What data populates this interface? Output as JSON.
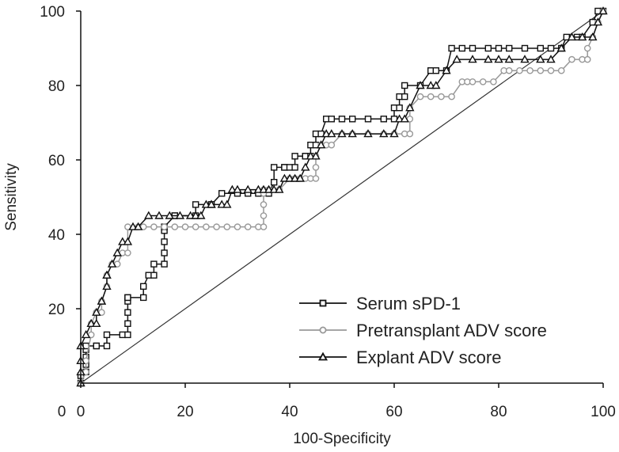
{
  "chart_data": {
    "type": "line",
    "title": "",
    "xlabel": "100-Specificity",
    "ylabel": "Sensitivity",
    "xlim": [
      0,
      100
    ],
    "ylim": [
      0,
      100
    ],
    "xticks": [
      0,
      20,
      40,
      60,
      80,
      100
    ],
    "yticks": [
      20,
      40,
      60,
      80,
      100
    ],
    "grid": false,
    "legend_position": "bottom-right",
    "reference_line": {
      "x": [
        0,
        100
      ],
      "y": [
        0,
        100
      ],
      "color": "#333333"
    },
    "series": [
      {
        "name": "Serum sPD-1",
        "marker": "square",
        "color": "#111111",
        "x": [
          0,
          0,
          1,
          1,
          1,
          1,
          1,
          3,
          3,
          5,
          5,
          8,
          9,
          9,
          9,
          9,
          9,
          9,
          12,
          12,
          13,
          14,
          14,
          16,
          16,
          16,
          16,
          16,
          18,
          18,
          22,
          22,
          25,
          25,
          27,
          30,
          32,
          34,
          36,
          37,
          37,
          39,
          39,
          40,
          41,
          41,
          43,
          43,
          44,
          44,
          45,
          45,
          46,
          47,
          48,
          50,
          52,
          55,
          58,
          60,
          60,
          61,
          61,
          62,
          62,
          65,
          67,
          68,
          70,
          71,
          73,
          75,
          78,
          80,
          82,
          85,
          88,
          90,
          92,
          93,
          95,
          96,
          98,
          99,
          100
        ],
        "y": [
          0,
          2,
          3,
          5,
          7,
          9,
          10,
          10,
          10,
          10,
          13,
          13,
          13,
          16,
          19,
          22,
          23,
          23,
          23,
          26,
          29,
          29,
          32,
          32,
          35,
          38,
          41,
          42,
          45,
          45,
          45,
          48,
          48,
          48,
          51,
          51,
          51,
          51,
          51,
          54,
          58,
          58,
          58,
          58,
          58,
          61,
          61,
          61,
          61,
          64,
          64,
          67,
          67,
          71,
          71,
          71,
          71,
          71,
          71,
          71,
          74,
          74,
          77,
          77,
          80,
          80,
          84,
          84,
          84,
          90,
          90,
          90,
          90,
          90,
          90,
          90,
          90,
          90,
          90,
          93,
          93,
          93,
          97,
          100,
          100
        ]
      },
      {
        "name": "Pretransplant ADV score",
        "marker": "circle",
        "color": "#999999",
        "x": [
          0,
          0,
          1,
          1,
          2,
          2,
          3,
          3,
          4,
          4,
          5,
          5,
          6,
          7,
          8,
          9,
          9,
          11,
          12,
          14,
          16,
          18,
          20,
          22,
          24,
          26,
          28,
          30,
          32,
          34,
          35,
          35,
          35,
          35,
          35,
          36,
          38,
          40,
          41,
          42,
          43,
          44,
          45,
          45,
          45,
          46,
          47,
          48,
          50,
          52,
          55,
          58,
          60,
          62,
          63,
          63,
          63,
          65,
          67,
          69,
          71,
          73,
          74,
          75,
          77,
          79,
          81,
          82,
          84,
          86,
          88,
          90,
          92,
          94,
          96,
          97,
          97,
          98,
          99,
          100
        ],
        "y": [
          0,
          0,
          3,
          6,
          13,
          16,
          19,
          19,
          19,
          22,
          26,
          29,
          32,
          32,
          35,
          35,
          42,
          42,
          42,
          42,
          42,
          42,
          42,
          42,
          42,
          42,
          42,
          42,
          42,
          42,
          42,
          45,
          48,
          51,
          52,
          52,
          52,
          55,
          55,
          55,
          55,
          55,
          55,
          58,
          61,
          64,
          64,
          64,
          67,
          67,
          67,
          67,
          67,
          67,
          67,
          71,
          74,
          77,
          77,
          77,
          77,
          81,
          81,
          81,
          81,
          81,
          84,
          84,
          84,
          84,
          84,
          84,
          84,
          87,
          87,
          87,
          90,
          93,
          97,
          100
        ]
      },
      {
        "name": "Explant ADV score",
        "marker": "triangle",
        "color": "#111111",
        "x": [
          0,
          0,
          0,
          0,
          1,
          2,
          2,
          3,
          3,
          4,
          4,
          5,
          5,
          5,
          6,
          7,
          8,
          9,
          10,
          11,
          13,
          15,
          17,
          19,
          21,
          22,
          23,
          24,
          25,
          25,
          27,
          28,
          29,
          30,
          32,
          34,
          35,
          36,
          37,
          38,
          39,
          40,
          41,
          42,
          43,
          44,
          45,
          46,
          47,
          48,
          50,
          52,
          55,
          58,
          60,
          61,
          62,
          63,
          65,
          67,
          68,
          70,
          72,
          75,
          78,
          80,
          82,
          85,
          88,
          90,
          92,
          94,
          96,
          98,
          99,
          100
        ],
        "y": [
          0,
          3,
          6,
          10,
          13,
          16,
          16,
          16,
          19,
          22,
          22,
          26,
          29,
          29,
          32,
          35,
          38,
          38,
          42,
          42,
          45,
          45,
          45,
          45,
          45,
          45,
          45,
          48,
          48,
          48,
          48,
          48,
          52,
          52,
          52,
          52,
          52,
          52,
          52,
          52,
          55,
          55,
          55,
          55,
          58,
          61,
          61,
          64,
          67,
          67,
          67,
          67,
          67,
          67,
          67,
          71,
          71,
          74,
          80,
          80,
          80,
          84,
          87,
          87,
          87,
          87,
          87,
          87,
          87,
          87,
          90,
          93,
          93,
          93,
          97,
          100
        ]
      }
    ]
  }
}
